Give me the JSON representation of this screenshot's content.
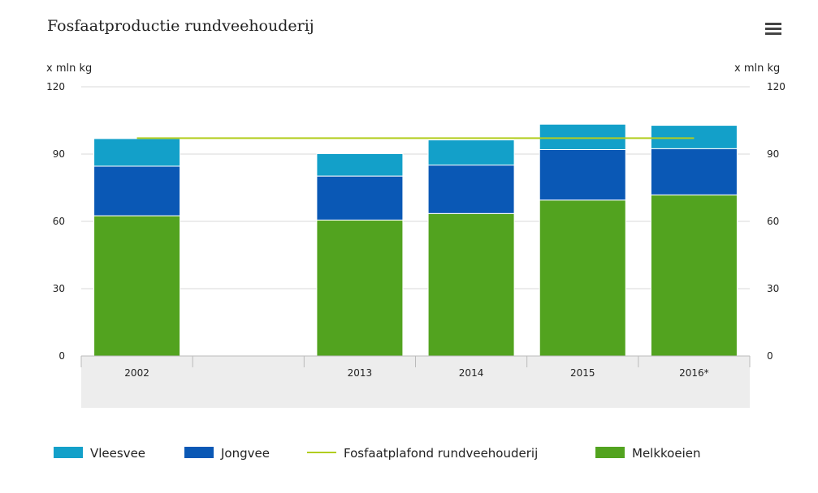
{
  "chart_data": {
    "type": "bar",
    "stacked": true,
    "title": "Fosfaatproductie rundveehouderij",
    "ylabel_left": "x mln kg",
    "ylabel_right": "x mln kg",
    "ylim": [
      0,
      120
    ],
    "yticks": [
      "0",
      "30",
      "60",
      "90",
      "120"
    ],
    "categories": [
      "2002",
      "",
      "2013",
      "2014",
      "2015",
      "2016*"
    ],
    "series": [
      {
        "name": "Melkkoeien",
        "color": "#52a31f",
        "values": [
          62.5,
          null,
          60.6,
          63.5,
          69.5,
          71.8
        ]
      },
      {
        "name": "Jongvee",
        "color": "#0a58b5",
        "values": [
          22.1,
          null,
          19.6,
          21.6,
          22.5,
          20.6
        ]
      },
      {
        "name": "Vleesvee",
        "color": "#13a0c9",
        "values": [
          12.3,
          null,
          10.0,
          11.2,
          11.3,
          10.4
        ]
      }
    ],
    "line": {
      "name": "Fosfaatplafond rundveehouderij",
      "color": "#b2cd1f",
      "value": 97.1,
      "x_from": "2002",
      "x_to": "2016*"
    },
    "legend": {
      "placement": "bottom",
      "items": [
        "Vleesvee",
        "Jongvee",
        "Fosfaatplafond rundveehouderij",
        "Melkkoeien"
      ]
    },
    "grid": true,
    "menu_icon": "hamburger-menu-icon"
  }
}
